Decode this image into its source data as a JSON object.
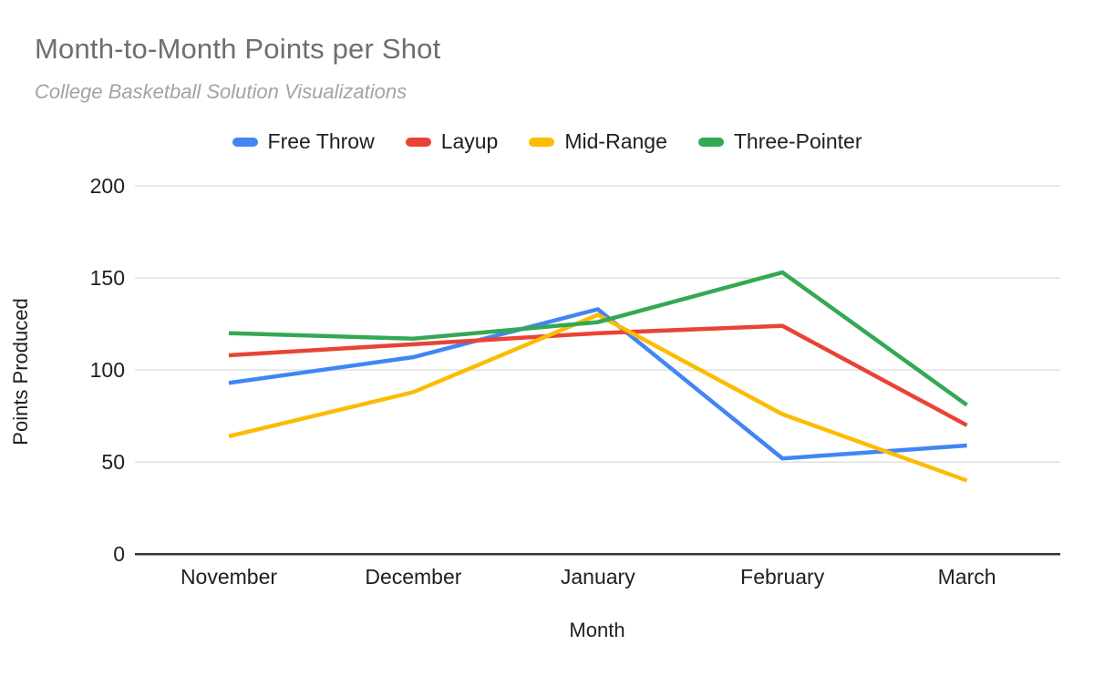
{
  "title": "Month-to-Month Points per Shot",
  "subtitle": "College Basketball Solution Visualizations",
  "chart_data": {
    "type": "line",
    "title": "Month-to-Month Points per Shot",
    "subtitle": "College Basketball Solution Visualizations",
    "categories": [
      "November",
      "December",
      "January",
      "February",
      "March"
    ],
    "series": [
      {
        "name": "Free Throw",
        "color": "#4285F4",
        "values": [
          93,
          107,
          133,
          52,
          59
        ]
      },
      {
        "name": "Layup",
        "color": "#EA4335",
        "values": [
          108,
          114,
          120,
          124,
          70
        ]
      },
      {
        "name": "Mid-Range",
        "color": "#FBBC04",
        "values": [
          64,
          88,
          130,
          76,
          40
        ]
      },
      {
        "name": "Three-Pointer",
        "color": "#34A853",
        "values": [
          120,
          117,
          126,
          153,
          81
        ]
      }
    ],
    "xlabel": "Month",
    "ylabel": "Points Produced",
    "ylim": [
      0,
      200
    ],
    "yticks": [
      0,
      50,
      100,
      150,
      200
    ],
    "grid": true,
    "legend_position": "top"
  },
  "colors": {
    "background": "#ffffff",
    "title_text": "#6e6e6e",
    "subtitle_text": "#a3a3a3",
    "axis_text": "#1f1f1f",
    "gridline": "#e0e0e0",
    "axis_line": "#333333"
  }
}
